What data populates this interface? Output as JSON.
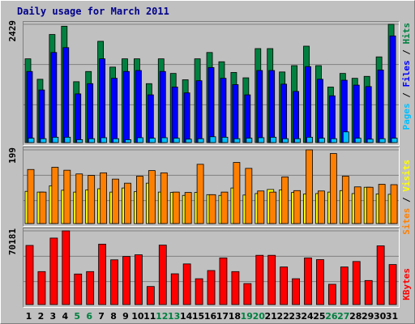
{
  "title": "Daily usage for March 2011",
  "colors": {
    "hits": "#008040",
    "files": "#0000ff",
    "pages": "#00c0ff",
    "visits": "#ffff00",
    "sites": "#ff8000",
    "kbytes": "#ff0000",
    "weekend_day": "#008040",
    "weekday": "#000000"
  },
  "panels": {
    "top": {
      "max_label": "2429",
      "legend": {
        "pages": "Pages",
        "sep1": " / ",
        "files": "Files",
        "sep2": " / ",
        "hits": "Hits"
      }
    },
    "mid": {
      "max_label": "199",
      "legend": {
        "sites": "Sites",
        "sep": " / ",
        "visits": "Visits"
      }
    },
    "bottom": {
      "max_label": "70181",
      "legend": {
        "kbytes": "KBytes"
      }
    }
  },
  "chart_data": [
    {
      "type": "bar",
      "panel": "top",
      "categories": [
        "1",
        "2",
        "3",
        "4",
        "5",
        "6",
        "7",
        "8",
        "9",
        "10",
        "11",
        "12",
        "13",
        "14",
        "15",
        "16",
        "17",
        "18",
        "19",
        "20",
        "21",
        "22",
        "23",
        "24",
        "25",
        "26",
        "27",
        "28",
        "29",
        "30",
        "31"
      ],
      "ylim": [
        0,
        2429
      ],
      "series": [
        {
          "name": "Hits",
          "values": [
            1720,
            1300,
            2220,
            2390,
            1250,
            1460,
            2080,
            1550,
            1720,
            1720,
            1210,
            1720,
            1420,
            1290,
            1720,
            1850,
            1660,
            1440,
            1330,
            1930,
            1930,
            1450,
            1580,
            1980,
            1580,
            1140,
            1420,
            1320,
            1360,
            1760,
            2429
          ]
        },
        {
          "name": "Files",
          "values": [
            1460,
            1080,
            1850,
            1950,
            1000,
            1210,
            1720,
            1320,
            1460,
            1480,
            980,
            1460,
            1140,
            1020,
            1270,
            1540,
            1320,
            1190,
            980,
            1480,
            1480,
            1200,
            1050,
            1560,
            1300,
            960,
            1280,
            1180,
            1150,
            1490,
            2190
          ]
        },
        {
          "name": "Pages",
          "values": [
            90,
            80,
            110,
            110,
            60,
            80,
            100,
            80,
            60,
            100,
            90,
            100,
            90,
            70,
            80,
            120,
            110,
            80,
            90,
            100,
            110,
            80,
            80,
            110,
            90,
            80,
            220,
            90,
            70,
            80,
            90
          ]
        }
      ],
      "xlabel": "",
      "ylabel": ""
    },
    {
      "type": "bar",
      "panel": "mid",
      "categories": [
        "1",
        "2",
        "3",
        "4",
        "5",
        "6",
        "7",
        "8",
        "9",
        "10",
        "11",
        "12",
        "13",
        "14",
        "15",
        "16",
        "17",
        "18",
        "19",
        "20",
        "21",
        "22",
        "23",
        "24",
        "25",
        "26",
        "27",
        "28",
        "29",
        "30",
        "31"
      ],
      "ylim": [
        0,
        199
      ],
      "series": [
        {
          "name": "Sites",
          "values": [
            146,
            85,
            152,
            144,
            134,
            130,
            137,
            120,
            109,
            128,
            143,
            137,
            85,
            84,
            160,
            78,
            85,
            165,
            149,
            88,
            85,
            126,
            89,
            199,
            88,
            189,
            128,
            99,
            98,
            106,
            105
          ]
        },
        {
          "name": "Visits",
          "values": [
            87,
            85,
            102,
            90,
            85,
            91,
            94,
            85,
            96,
            86,
            109,
            85,
            84,
            76,
            84,
            78,
            76,
            96,
            77,
            81,
            92,
            91,
            84,
            80,
            81,
            85,
            89,
            81,
            98,
            80,
            79
          ]
        }
      ],
      "xlabel": "",
      "ylabel": ""
    },
    {
      "type": "bar",
      "panel": "bottom",
      "categories": [
        "1",
        "2",
        "3",
        "4",
        "5",
        "6",
        "7",
        "8",
        "9",
        "10",
        "11",
        "12",
        "13",
        "14",
        "15",
        "16",
        "17",
        "18",
        "19",
        "20",
        "21",
        "22",
        "23",
        "24",
        "25",
        "26",
        "27",
        "28",
        "29",
        "30",
        "31"
      ],
      "ylim": [
        0,
        70181
      ],
      "series": [
        {
          "name": "KBytes",
          "values": [
            56300,
            31400,
            63300,
            70181,
            29100,
            31400,
            57500,
            42600,
            45800,
            47400,
            17200,
            56600,
            29300,
            38700,
            24600,
            32400,
            44400,
            31400,
            20000,
            46900,
            46900,
            35800,
            24600,
            44400,
            42800,
            19300,
            35800,
            41000,
            22900,
            55900,
            38100
          ]
        }
      ],
      "xlabel": "",
      "ylabel": ""
    }
  ],
  "weekend_days": [
    "5",
    "6",
    "12",
    "13",
    "19",
    "20",
    "26",
    "27"
  ]
}
